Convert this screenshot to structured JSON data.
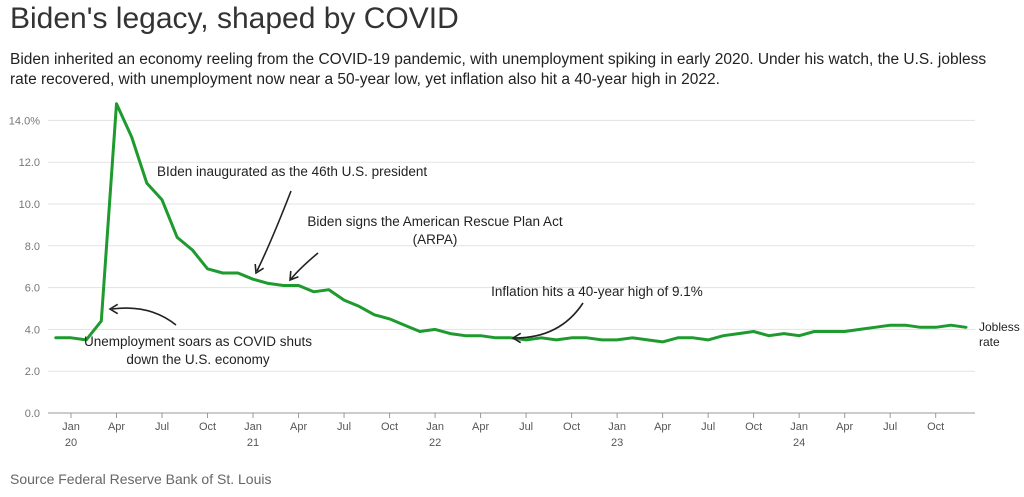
{
  "title": "Biden's legacy, shaped by COVID",
  "subtitle": "Biden inherited an economy reeling from the COVID-19 pandemic, with unemployment spiking in early 2020. Under his watch, the U.S. jobless rate recovered, with unemployment now near a 50-year low, yet inflation also hit a 40-year high in 2022.",
  "source": "Source Federal Reserve Bank of St. Louis",
  "colors": {
    "line": "#1e9a2e",
    "grid": "#e3e3e3"
  },
  "chart_data": {
    "type": "line",
    "xlabel": "",
    "ylabel": "",
    "ylim": [
      0,
      14
    ],
    "yticks": [
      {
        "value": 0,
        "label": "0.0"
      },
      {
        "value": 2,
        "label": "2.0"
      },
      {
        "value": 4,
        "label": "4.0"
      },
      {
        "value": 6,
        "label": "6.0"
      },
      {
        "value": 8,
        "label": "8.0"
      },
      {
        "value": 10,
        "label": "10.0"
      },
      {
        "value": 12,
        "label": "12.0"
      },
      {
        "value": 14,
        "label": "14.0%"
      }
    ],
    "xticks": [
      {
        "date": "2020-01",
        "label": "Jan",
        "year": "20"
      },
      {
        "date": "2020-04",
        "label": "Apr",
        "year": ""
      },
      {
        "date": "2020-07",
        "label": "Jul",
        "year": ""
      },
      {
        "date": "2020-10",
        "label": "Oct",
        "year": ""
      },
      {
        "date": "2021-01",
        "label": "Jan",
        "year": "21"
      },
      {
        "date": "2021-04",
        "label": "Apr",
        "year": ""
      },
      {
        "date": "2021-07",
        "label": "Jul",
        "year": ""
      },
      {
        "date": "2021-10",
        "label": "Oct",
        "year": ""
      },
      {
        "date": "2022-01",
        "label": "Jan",
        "year": "22"
      },
      {
        "date": "2022-04",
        "label": "Apr",
        "year": ""
      },
      {
        "date": "2022-07",
        "label": "Jul",
        "year": ""
      },
      {
        "date": "2022-10",
        "label": "Oct",
        "year": ""
      },
      {
        "date": "2023-01",
        "label": "Jan",
        "year": "23"
      },
      {
        "date": "2023-04",
        "label": "Apr",
        "year": ""
      },
      {
        "date": "2023-07",
        "label": "Jul",
        "year": ""
      },
      {
        "date": "2023-10",
        "label": "Oct",
        "year": ""
      },
      {
        "date": "2024-01",
        "label": "Jan",
        "year": "24"
      },
      {
        "date": "2024-04",
        "label": "Apr",
        "year": ""
      },
      {
        "date": "2024-07",
        "label": "Jul",
        "year": ""
      },
      {
        "date": "2024-10",
        "label": "Oct",
        "year": ""
      }
    ],
    "grid": true,
    "series": [
      {
        "name": "Jobless rate",
        "x": [
          "2019-12",
          "2020-01",
          "2020-02",
          "2020-03",
          "2020-04",
          "2020-05",
          "2020-06",
          "2020-07",
          "2020-08",
          "2020-09",
          "2020-10",
          "2020-11",
          "2020-12",
          "2021-01",
          "2021-02",
          "2021-03",
          "2021-04",
          "2021-05",
          "2021-06",
          "2021-07",
          "2021-08",
          "2021-09",
          "2021-10",
          "2021-11",
          "2021-12",
          "2022-01",
          "2022-02",
          "2022-03",
          "2022-04",
          "2022-05",
          "2022-06",
          "2022-07",
          "2022-08",
          "2022-09",
          "2022-10",
          "2022-11",
          "2022-12",
          "2023-01",
          "2023-02",
          "2023-03",
          "2023-04",
          "2023-05",
          "2023-06",
          "2023-07",
          "2023-08",
          "2023-09",
          "2023-10",
          "2023-11",
          "2023-12",
          "2024-01",
          "2024-02",
          "2024-03",
          "2024-04",
          "2024-05",
          "2024-06",
          "2024-07",
          "2024-08",
          "2024-09",
          "2024-10",
          "2024-11",
          "2024-12"
        ],
        "values": [
          3.6,
          3.6,
          3.5,
          4.4,
          14.8,
          13.2,
          11.0,
          10.2,
          8.4,
          7.8,
          6.9,
          6.7,
          6.7,
          6.4,
          6.2,
          6.1,
          6.1,
          5.8,
          5.9,
          5.4,
          5.1,
          4.7,
          4.5,
          4.2,
          3.9,
          4.0,
          3.8,
          3.7,
          3.7,
          3.6,
          3.6,
          3.5,
          3.6,
          3.5,
          3.6,
          3.6,
          3.5,
          3.5,
          3.6,
          3.5,
          3.4,
          3.6,
          3.6,
          3.5,
          3.7,
          3.8,
          3.9,
          3.7,
          3.8,
          3.7,
          3.9,
          3.9,
          3.9,
          4.0,
          4.1,
          4.2,
          4.2,
          4.1,
          4.1,
          4.2,
          4.1
        ]
      }
    ],
    "annotations": [
      {
        "text": "Unemployment soars as COVID shuts down the U.S. economy",
        "lines": [
          "Unemployment soars as COVID shuts",
          "down the U.S. economy"
        ],
        "date": "2020-03"
      },
      {
        "text": "BIden inaugurated as the 46th U.S. president",
        "lines": [
          "BIden inaugurated as the 46th U.S. president"
        ],
        "date": "2021-01"
      },
      {
        "text": "Biden signs the American Rescue Plan Act (ARPA)",
        "lines": [
          "Biden signs the American Rescue Plan Act",
          "(ARPA)"
        ],
        "date": "2021-03"
      },
      {
        "text": "Inflation hits a 40-year high of 9.1%",
        "lines": [
          "Inflation hits a 40-year high of 9.1%"
        ],
        "date": "2022-06"
      }
    ],
    "series_label": [
      "Jobless",
      "rate"
    ]
  }
}
